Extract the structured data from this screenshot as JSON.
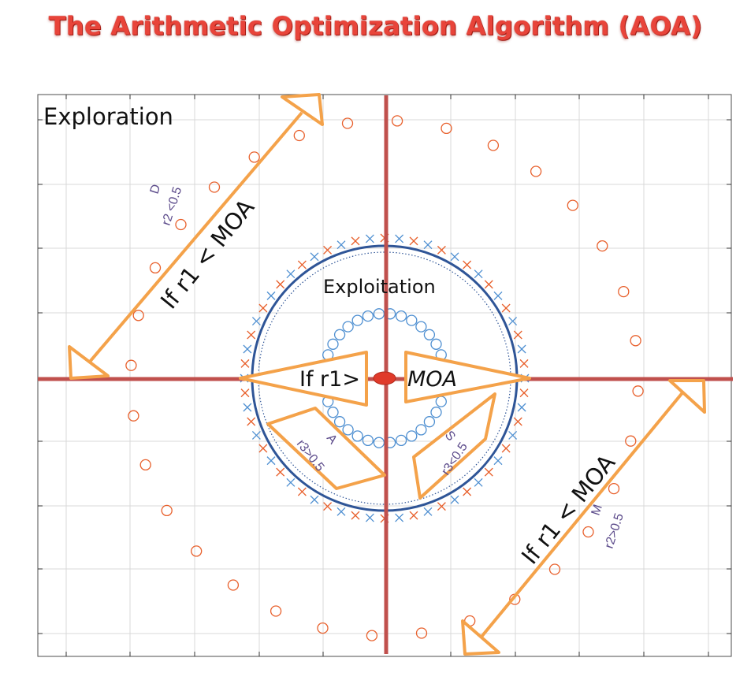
{
  "title": "The Arithmetic Optimization Algorithm (AOA)",
  "labels": {
    "exploration": "Exploration",
    "exploitation": "Exploitation",
    "d_op": "D",
    "d_cond": "r2 <0.5",
    "m_op": "M",
    "m_cond": "r2>0.5",
    "a_op": "A",
    "a_cond": "r3>0.5",
    "s_op": "S",
    "s_cond": "r3<0.5",
    "explore_rule_left": "If r1 < MOA",
    "explore_rule_right": "If r1 < MOA",
    "exploit_rule_left": "If r1>",
    "exploit_rule_right": "MOA"
  },
  "colors": {
    "title": "#e8443a",
    "axis": "#c0504d",
    "circle": "#2f5597",
    "orange": "#f4a24a",
    "orange_marker": "#e8602c",
    "blue_marker": "#4e8fd1",
    "purple_text": "#5b4a8a",
    "grid": "#d6d6d6"
  }
}
